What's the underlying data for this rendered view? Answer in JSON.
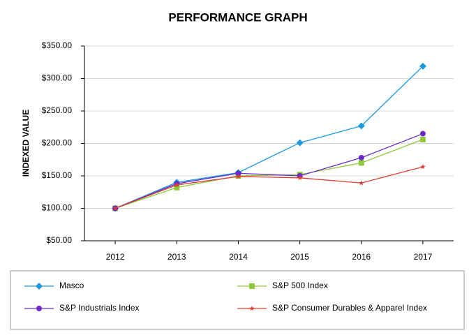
{
  "chart_data": {
    "type": "line",
    "title": "PERFORMANCE GRAPH",
    "y_label": "INDEXED VALUE",
    "categories": [
      "2012",
      "2013",
      "2014",
      "2015",
      "2016",
      "2017"
    ],
    "series": [
      {
        "name": "Masco",
        "color": "#1a9be0",
        "marker": "diamond",
        "values": [
          100,
          140,
          155,
          201,
          227,
          319
        ]
      },
      {
        "name": "S&P 500 Index",
        "color": "#8fc93a",
        "marker": "square",
        "values": [
          100,
          132,
          150,
          152,
          170,
          206
        ]
      },
      {
        "name": "S&P Industrials Index",
        "color": "#6a2bc9",
        "marker": "circle",
        "values": [
          100,
          138,
          154,
          150,
          178,
          215
        ]
      },
      {
        "name": "S&P Consumer Durables & Apparel Index",
        "color": "#e03c31",
        "marker": "star",
        "values": [
          100,
          136,
          149,
          147,
          139,
          164
        ]
      }
    ],
    "ylim": [
      50,
      350
    ],
    "yticks": [
      {
        "value": 50,
        "label": "$50.00"
      },
      {
        "value": 100,
        "label": "$100.00"
      },
      {
        "value": 150,
        "label": "$150.00"
      },
      {
        "value": 200,
        "label": "$200.00"
      },
      {
        "value": 250,
        "label": "$250.00"
      },
      {
        "value": 300,
        "label": "$300.00"
      },
      {
        "value": 350,
        "label": "$350.00"
      }
    ],
    "grid": true
  }
}
